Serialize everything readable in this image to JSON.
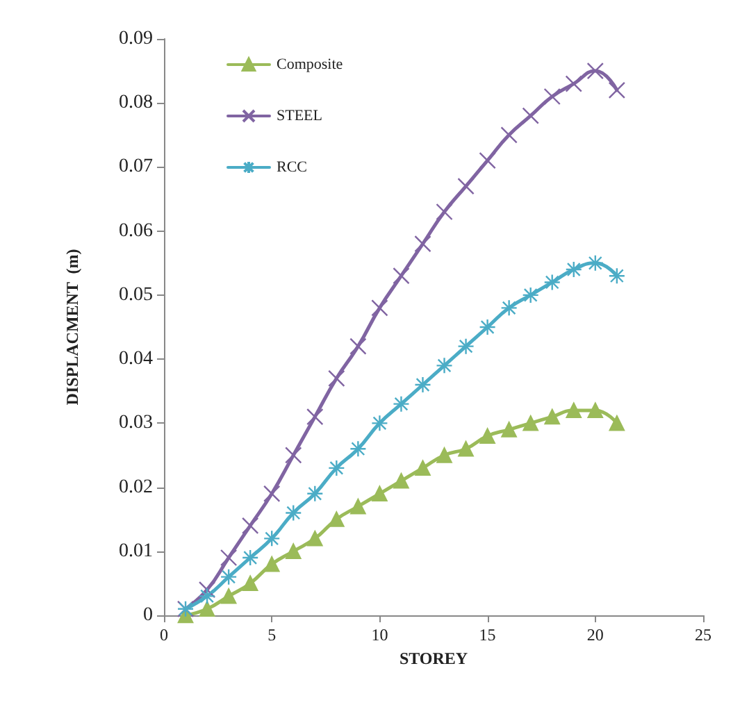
{
  "chart_data": {
    "type": "line",
    "xlabel": "STOREY",
    "ylabel": "DISPLACMENT  (m)",
    "x": [
      1,
      2,
      3,
      4,
      5,
      6,
      7,
      8,
      9,
      10,
      11,
      12,
      13,
      14,
      15,
      16,
      17,
      18,
      19,
      20,
      21
    ],
    "series": [
      {
        "name": "Composite",
        "color": "#9bbb59",
        "marker": "triangle",
        "values": [
          0,
          0.001,
          0.003,
          0.005,
          0.008,
          0.01,
          0.012,
          0.015,
          0.017,
          0.019,
          0.021,
          0.023,
          0.025,
          0.026,
          0.028,
          0.029,
          0.03,
          0.031,
          0.032,
          0.032,
          0.03
        ]
      },
      {
        "name": "STEEL",
        "color": "#8064a2",
        "marker": "cross",
        "values": [
          0.001,
          0.004,
          0.009,
          0.014,
          0.019,
          0.025,
          0.031,
          0.037,
          0.042,
          0.048,
          0.053,
          0.058,
          0.063,
          0.067,
          0.071,
          0.075,
          0.078,
          0.081,
          0.083,
          0.085,
          0.082
        ]
      },
      {
        "name": "RCC",
        "color": "#4bacc6",
        "marker": "star",
        "values": [
          0.001,
          0.003,
          0.006,
          0.009,
          0.012,
          0.016,
          0.019,
          0.023,
          0.026,
          0.03,
          0.033,
          0.036,
          0.039,
          0.042,
          0.045,
          0.048,
          0.05,
          0.052,
          0.054,
          0.055,
          0.053
        ]
      }
    ],
    "xlim": [
      0,
      25
    ],
    "xticks": [
      0,
      5,
      10,
      15,
      20,
      25
    ],
    "ylim": [
      0,
      0.09
    ],
    "yticks": [
      0,
      0.01,
      0.02,
      0.03,
      0.04,
      0.05,
      0.06,
      0.07,
      0.08,
      0.09
    ],
    "grid": false,
    "legend": "top left"
  }
}
